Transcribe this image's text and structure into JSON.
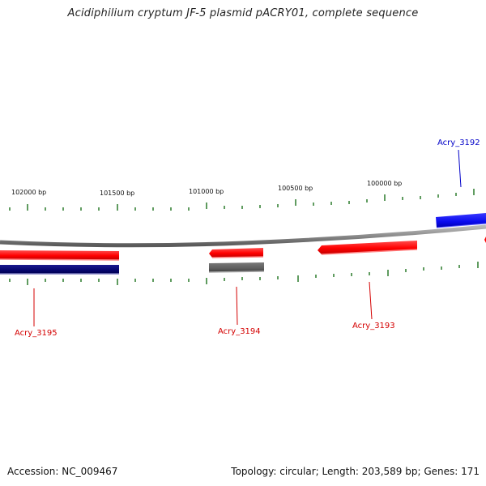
{
  "title": "Acidiphilium cryptum JF-5 plasmid pACRY01, complete sequence",
  "footer": {
    "accession": "Accession: NC_009467",
    "summary": "Topology: circular; Length: 203,589 bp; Genes: 171"
  },
  "scale": {
    "labels": [
      "102000 bp",
      "101500 bp",
      "101000 bp",
      "100500 bp",
      "100000 bp"
    ]
  },
  "genes": [
    {
      "name": "Acry_3195",
      "color": "#d40000"
    },
    {
      "name": "Acry_3194",
      "color": "#d40000"
    },
    {
      "name": "Acry_3193",
      "color": "#d40000"
    },
    {
      "name": "Acry_3192",
      "color": "#0000c8"
    }
  ],
  "colors": {
    "forward_gene": "#ff0000",
    "reverse_gene_blue": "#1010e0",
    "reverse_gene_navy": "#0a0a7a",
    "noncoding_gene": "#666666",
    "tick": "#2a7a2a",
    "backbone": "#8a8a8a"
  }
}
